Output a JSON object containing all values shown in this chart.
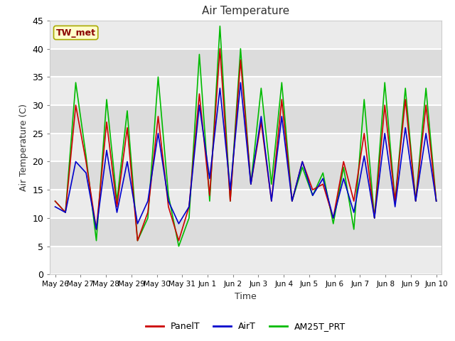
{
  "title": "Air Temperature",
  "xlabel": "Time",
  "ylabel": "Air Temperature (C)",
  "ylim": [
    0,
    45
  ],
  "yticks": [
    0,
    5,
    10,
    15,
    20,
    25,
    30,
    35,
    40,
    45
  ],
  "annotation_text": "TW_met",
  "annotation_color": "#8B0000",
  "annotation_bg": "#FFFFCC",
  "annotation_edge": "#AAAA00",
  "legend_labels": [
    "PanelT",
    "AirT",
    "AM25T_PRT"
  ],
  "line_colors": [
    "#CC0000",
    "#0000CC",
    "#00BB00"
  ],
  "fig_bg": "#FFFFFF",
  "plot_bg": "#FFFFFF",
  "band_light": "#EBEBEB",
  "band_dark": "#DCDCDC",
  "grid_color": "#FFFFFF",
  "x_labels": [
    "May 26",
    "May 27",
    "May 28",
    "May 29",
    "May 30",
    "May 31",
    "Jun 1",
    "Jun 2",
    "Jun 3",
    "Jun 4",
    "Jun 5",
    "Jun 6",
    "Jun 7",
    "Jun 8",
    "Jun 9",
    "Jun 10"
  ],
  "panel_t": [
    13,
    11,
    30,
    20,
    8,
    27,
    12,
    26,
    6,
    11,
    28,
    12,
    6,
    12,
    32,
    14,
    40,
    13,
    38,
    16,
    27,
    13,
    31,
    13,
    20,
    15,
    16,
    10,
    20,
    13,
    25,
    10,
    30,
    13,
    31,
    13,
    30,
    13
  ],
  "air_t": [
    12,
    11,
    20,
    18,
    8,
    22,
    11,
    20,
    9,
    13,
    25,
    13,
    9,
    12,
    30,
    17,
    33,
    15,
    34,
    16,
    28,
    13,
    28,
    13,
    20,
    14,
    17,
    10,
    17,
    11,
    21,
    10,
    25,
    12,
    26,
    13,
    25,
    13
  ],
  "am25t": [
    13,
    11,
    34,
    21,
    6,
    31,
    13,
    29,
    6,
    10,
    35,
    14,
    5,
    10,
    39,
    13,
    44,
    13,
    40,
    16,
    33,
    16,
    34,
    13,
    19,
    14,
    18,
    9,
    19,
    8,
    31,
    10,
    34,
    13,
    33,
    13,
    33,
    13
  ],
  "n_points": 38
}
